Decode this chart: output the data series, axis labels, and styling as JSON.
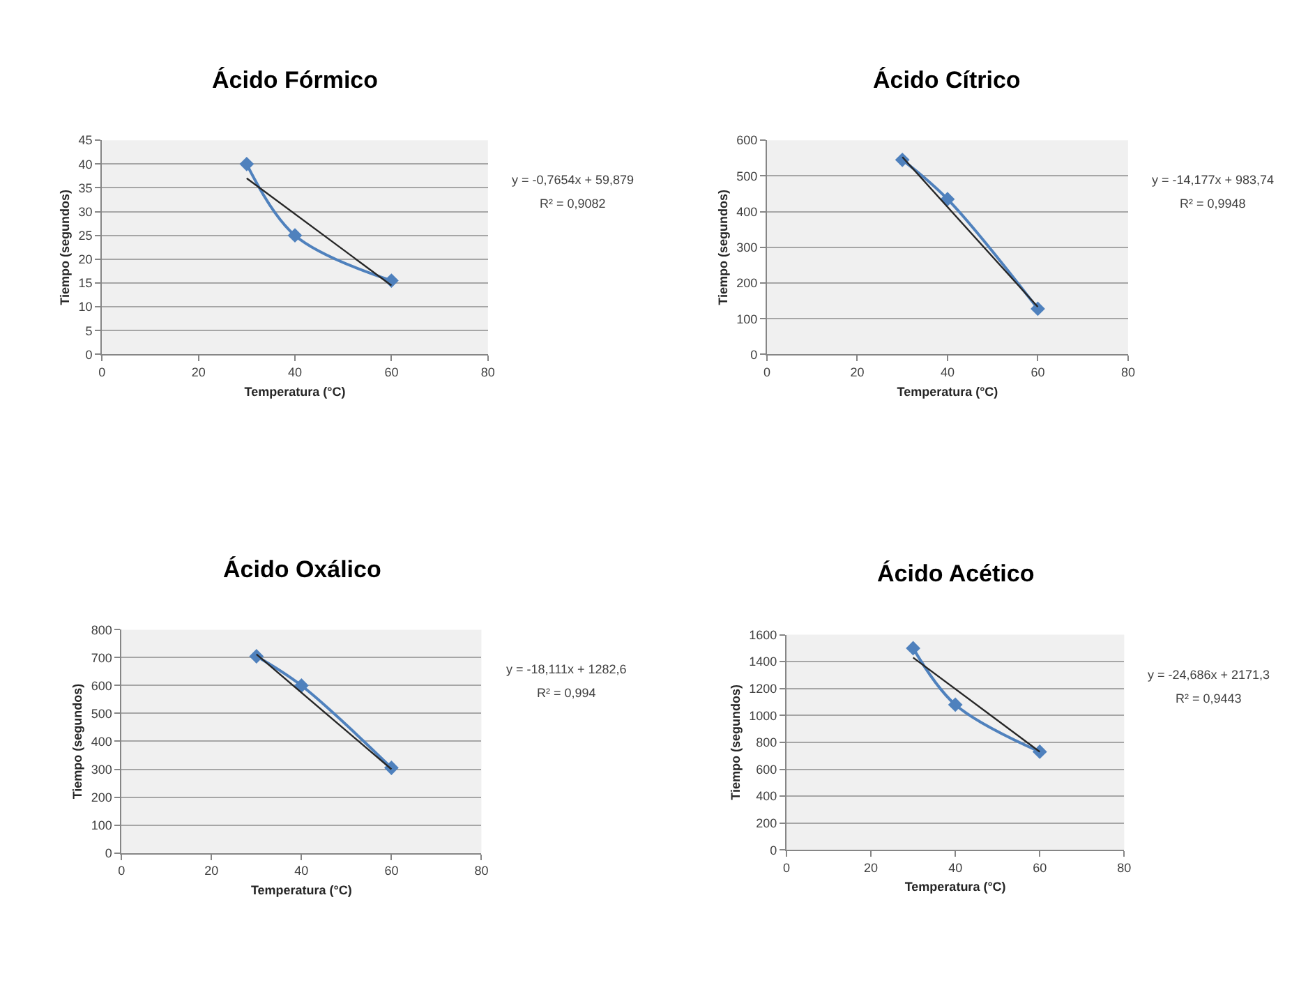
{
  "chart_data": [
    {
      "type": "line",
      "title": "Ácido Fórmico",
      "xlabel": "Temperatura (°C)",
      "ylabel": "Tiempo (segundos)",
      "annotations": [
        "y = -0,7654x + 59,879",
        "R² = 0,9082"
      ],
      "xlim": [
        0,
        80
      ],
      "xticks": [
        0,
        20,
        40,
        60,
        80
      ],
      "ylim": [
        0,
        45
      ],
      "yticks": [
        0,
        5,
        10,
        15,
        20,
        25,
        30,
        35,
        40,
        45
      ],
      "grid": "y",
      "series": [
        {
          "x": [
            30,
            40,
            60
          ],
          "values": [
            40,
            25,
            15.5
          ],
          "color": "#4f81bd",
          "marker": "diamond"
        },
        {
          "x": [
            30,
            60
          ],
          "values": [
            37,
            14.5
          ],
          "color": "#262626",
          "marker": "none"
        }
      ]
    },
    {
      "type": "line",
      "title": "Ácido Cítrico",
      "xlabel": "Temperatura (°C)",
      "ylabel": "Tiempo (segundos)",
      "annotations": [
        "y = -14,177x + 983,74",
        "R² = 0,9948"
      ],
      "xlim": [
        0,
        80
      ],
      "xticks": [
        0,
        20,
        40,
        60,
        80
      ],
      "ylim": [
        0,
        600
      ],
      "yticks": [
        0,
        100,
        200,
        300,
        400,
        500,
        600
      ],
      "grid": "y",
      "series": [
        {
          "x": [
            30,
            40,
            60
          ],
          "values": [
            545,
            435,
            128
          ],
          "color": "#4f81bd",
          "marker": "diamond"
        },
        {
          "x": [
            30,
            60
          ],
          "values": [
            553,
            133
          ],
          "color": "#262626",
          "marker": "none"
        }
      ]
    },
    {
      "type": "line",
      "title": "Ácido Oxálico",
      "xlabel": "Temperatura (°C)",
      "ylabel": "Tiempo (segundos)",
      "annotations": [
        "y = -18,111x + 1282,6",
        "R² = 0,994"
      ],
      "xlim": [
        0,
        80
      ],
      "xticks": [
        0,
        20,
        40,
        60,
        80
      ],
      "ylim": [
        0,
        800
      ],
      "yticks": [
        0,
        100,
        200,
        300,
        400,
        500,
        600,
        700,
        800
      ],
      "grid": "y",
      "series": [
        {
          "x": [
            30,
            40,
            60
          ],
          "values": [
            705,
            600,
            305
          ],
          "color": "#4f81bd",
          "marker": "diamond"
        },
        {
          "x": [
            30,
            60
          ],
          "values": [
            712,
            300
          ],
          "color": "#262626",
          "marker": "none"
        }
      ]
    },
    {
      "type": "line",
      "title": "Ácido Acético",
      "xlabel": "Temperatura (°C)",
      "ylabel": "Tiempo (segundos)",
      "annotations": [
        "y = -24,686x + 2171,3",
        "R² = 0,9443"
      ],
      "xlim": [
        0,
        80
      ],
      "xticks": [
        0,
        20,
        40,
        60,
        80
      ],
      "ylim": [
        0,
        1600
      ],
      "yticks": [
        0,
        200,
        400,
        600,
        800,
        1000,
        1200,
        1400,
        1600
      ],
      "grid": "y",
      "series": [
        {
          "x": [
            30,
            40,
            60
          ],
          "values": [
            1500,
            1080,
            730
          ],
          "color": "#4f81bd",
          "marker": "diamond"
        },
        {
          "x": [
            30,
            60
          ],
          "values": [
            1430,
            730
          ],
          "color": "#262626",
          "marker": "none"
        }
      ]
    }
  ]
}
